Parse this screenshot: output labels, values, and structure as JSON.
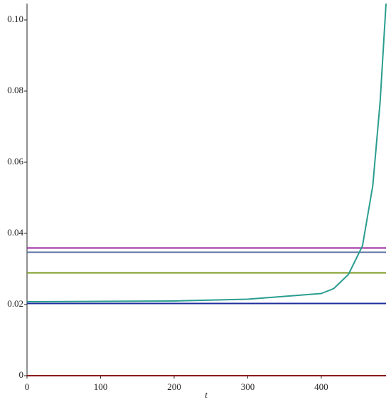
{
  "chart_data": {
    "type": "line",
    "x_label": "t",
    "xlim": [
      0,
      488
    ],
    "ylim": [
      0,
      0.1046
    ],
    "xticks": [
      0,
      100,
      200,
      300,
      400
    ],
    "yticks": [
      0,
      0.02,
      0.04,
      0.06,
      0.08,
      {
        "value": 0.1,
        "label": "0.10"
      }
    ],
    "series": [
      {
        "color": "#2a9d8f",
        "x": [
          0,
          100,
          200,
          300,
          400,
          417,
          437,
          456,
          470,
          480,
          488
        ],
        "values": [
          0.0208,
          0.0209,
          0.021,
          0.0215,
          0.0231,
          0.0245,
          0.0285,
          0.0365,
          0.0534,
          0.077,
          0.1046
        ]
      },
      {
        "color": "#9b1f9b",
        "x": [
          0,
          488
        ],
        "values": [
          0.0359,
          0.0359
        ]
      },
      {
        "color": "#5b6f9e",
        "x": [
          0,
          488
        ],
        "values": [
          0.0347,
          0.0347
        ]
      },
      {
        "color": "#7a9a1e",
        "x": [
          0,
          488
        ],
        "values": [
          0.0289,
          0.0289
        ]
      },
      {
        "color": "#1f2e9e",
        "x": [
          0,
          488
        ],
        "values": [
          0.0203,
          0.0203
        ]
      },
      {
        "color": "#8b1a1a",
        "x": [
          0,
          488
        ],
        "values": [
          0,
          0
        ]
      }
    ]
  }
}
